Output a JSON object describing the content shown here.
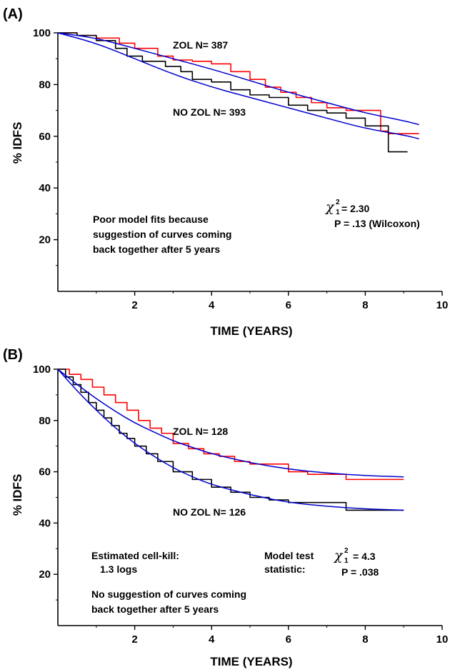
{
  "chart_data": [
    {
      "panel_label": "(A)",
      "type": "line",
      "xlabel": "TIME (YEARS)",
      "ylabel": "% IDFS",
      "xlim": [
        0,
        10
      ],
      "ylim": [
        0,
        100
      ],
      "xticks": [
        2,
        4,
        6,
        8,
        10
      ],
      "yticks": [
        20,
        40,
        60,
        80,
        100
      ],
      "colors": {
        "zol": "#ff0000",
        "nozol": "#000000",
        "fit": "#0000cc"
      },
      "labels": {
        "zol": "ZOL N= 387",
        "nozol": "NO ZOL N= 393"
      },
      "series": [
        {
          "key": "zol_km",
          "color": "#ff0000",
          "step": true,
          "x": [
            0,
            0.5,
            1.0,
            1.6,
            2.0,
            2.6,
            3.0,
            3.5,
            4.0,
            4.5,
            5.0,
            5.4,
            5.8,
            6.2,
            6.6,
            7.0,
            7.5,
            7.9,
            8.4,
            8.6,
            9.4
          ],
          "y": [
            100,
            99,
            98,
            96,
            94,
            91,
            89.5,
            89,
            88,
            85,
            82,
            79,
            77,
            75,
            73,
            71,
            70,
            70,
            62,
            61,
            61
          ]
        },
        {
          "key": "nozol_km",
          "color": "#000000",
          "step": true,
          "x": [
            0,
            0.5,
            1.0,
            1.5,
            1.8,
            2.2,
            2.8,
            3.2,
            3.5,
            4.0,
            4.5,
            5.0,
            5.5,
            6.0,
            6.5,
            7.0,
            7.5,
            8.0,
            8.6,
            9.1
          ],
          "y": [
            100,
            99,
            97,
            94,
            91,
            89,
            87,
            85,
            82,
            81,
            78,
            76,
            75,
            72,
            70,
            69,
            67,
            64,
            54,
            54
          ]
        },
        {
          "key": "zol_fit",
          "color": "#0000cc",
          "step": false,
          "x": [
            0,
            1,
            2,
            3,
            4,
            5,
            6,
            7,
            8,
            9,
            9.4
          ],
          "y": [
            100,
            98,
            94,
            90,
            86,
            81.5,
            77,
            73,
            69,
            66,
            64.5
          ]
        },
        {
          "key": "nozol_fit",
          "color": "#0000cc",
          "step": false,
          "x": [
            0,
            1,
            2,
            3,
            4,
            5,
            6,
            7,
            8,
            9,
            9.4
          ],
          "y": [
            100,
            96,
            90,
            84,
            79,
            75,
            71,
            67,
            63,
            60.5,
            59
          ]
        }
      ],
      "annotations": {
        "text_lines": [
          "Poor model fits because",
          "suggestion of curves coming",
          "back together after 5 years"
        ],
        "chi_symbol": "χ",
        "chi_sub": "1",
        "chi_sup": "2",
        "chi_value": "= 2.30",
        "p_value": "P = .13 (Wilcoxon)"
      }
    },
    {
      "panel_label": "(B)",
      "type": "line",
      "xlabel": "TIME (YEARS)",
      "ylabel": "% IDFS",
      "xlim": [
        0,
        10
      ],
      "ylim": [
        0,
        100
      ],
      "xticks": [
        2,
        4,
        6,
        8,
        10
      ],
      "yticks": [
        20,
        40,
        60,
        80,
        100
      ],
      "colors": {
        "zol": "#ff0000",
        "nozol": "#000000",
        "fit": "#0000cc"
      },
      "labels": {
        "zol": "ZOL N= 128",
        "nozol": "NO ZOL N= 126"
      },
      "series": [
        {
          "key": "zol_km",
          "color": "#ff0000",
          "step": true,
          "x": [
            0,
            0.3,
            0.6,
            0.9,
            1.2,
            1.5,
            1.8,
            2.1,
            2.4,
            2.7,
            3.0,
            3.4,
            3.8,
            4.2,
            4.6,
            5.0,
            5.5,
            6.0,
            6.5,
            7.0,
            7.5,
            8.0,
            9.0
          ],
          "y": [
            100,
            98,
            96,
            93,
            90,
            87,
            84,
            80,
            77,
            75,
            71,
            69,
            67,
            66,
            64,
            63,
            63,
            60,
            59,
            59,
            57,
            57,
            57
          ]
        },
        {
          "key": "nozol_km",
          "color": "#000000",
          "step": true,
          "x": [
            0,
            0.2,
            0.4,
            0.6,
            0.8,
            1.0,
            1.2,
            1.4,
            1.6,
            1.8,
            2.0,
            2.3,
            2.6,
            3.0,
            3.5,
            4.0,
            4.5,
            5.0,
            5.5,
            6.0,
            7.0,
            7.5,
            8.0,
            9.0
          ],
          "y": [
            100,
            97,
            94,
            91,
            87,
            84,
            81,
            78,
            75,
            73,
            70,
            67,
            64,
            60,
            57,
            54,
            52,
            50,
            49,
            48,
            48,
            45,
            45,
            45
          ]
        },
        {
          "key": "zol_fit",
          "color": "#0000cc",
          "step": false,
          "x": [
            0,
            0.5,
            1,
            1.5,
            2,
            2.5,
            3,
            3.5,
            4,
            5,
            6,
            7,
            8,
            9
          ],
          "y": [
            100,
            94,
            88.5,
            83.5,
            79,
            75.5,
            72,
            69.5,
            67,
            63.5,
            61,
            59.5,
            58.5,
            58
          ]
        },
        {
          "key": "nozol_fit",
          "color": "#0000cc",
          "step": false,
          "x": [
            0,
            0.5,
            1,
            1.5,
            2,
            2.5,
            3,
            3.5,
            4,
            5,
            6,
            7,
            8,
            9
          ],
          "y": [
            100,
            91.5,
            84,
            77,
            71,
            66,
            61.5,
            58,
            55,
            51,
            48,
            46.5,
            45.5,
            45
          ]
        }
      ],
      "annotations": {
        "cell_kill_lines": [
          "Estimated cell-kill:",
          "1.3 logs"
        ],
        "model_lines": [
          "Model test",
          "statistic:"
        ],
        "chi_symbol": "χ",
        "chi_sub": "1",
        "chi_sup": "2",
        "chi_value": "= 4.3",
        "p_value": "P = .038",
        "text_lines": [
          "No suggestion of curves coming",
          "back together after 5 years"
        ]
      }
    }
  ]
}
